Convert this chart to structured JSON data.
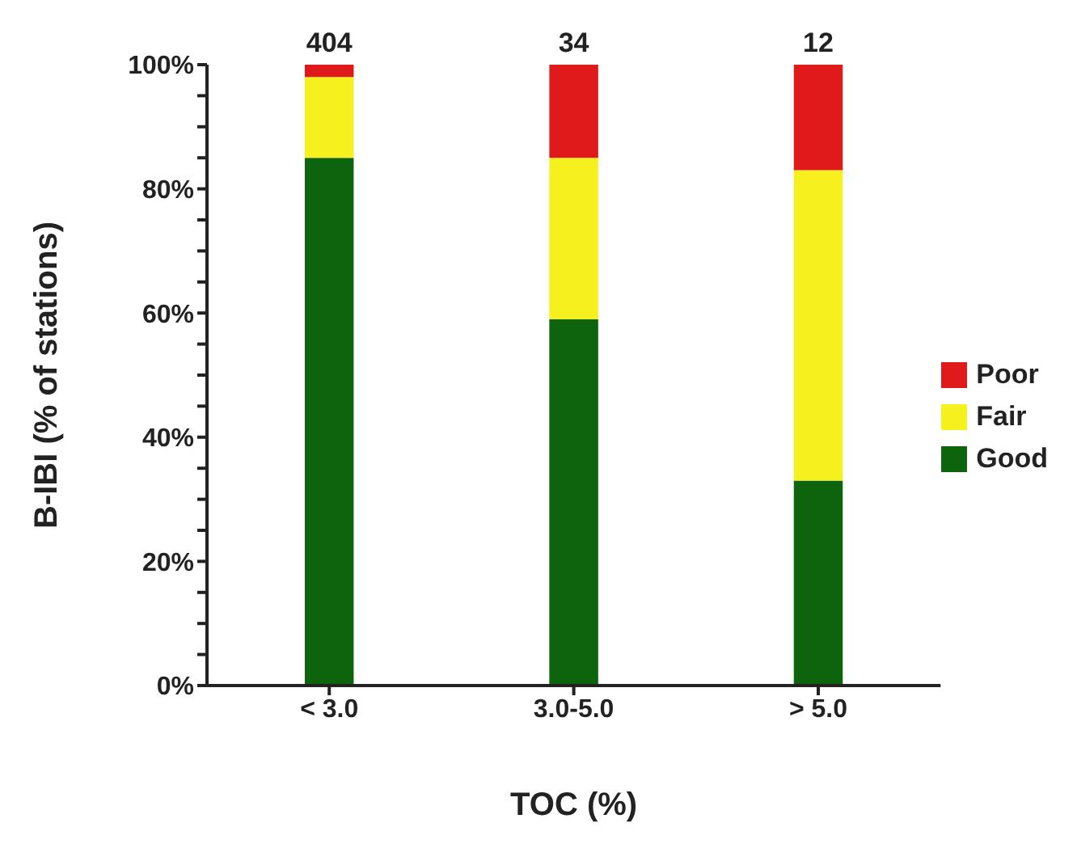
{
  "chart_data": {
    "type": "bar",
    "stacked": true,
    "xlabel": "TOC (%)",
    "ylabel": "B-IBI (% of stations)",
    "categories": [
      "< 3.0",
      "3.0-5.0",
      "> 5.0"
    ],
    "series": [
      {
        "name": "Good",
        "color": "#0d640d",
        "values": [
          85,
          59,
          33
        ]
      },
      {
        "name": "Fair",
        "color": "#f5f01e",
        "values": [
          13,
          26,
          50
        ]
      },
      {
        "name": "Poor",
        "color": "#e01a1a",
        "values": [
          2,
          15,
          17
        ]
      }
    ],
    "annotations": [
      {
        "text": "404",
        "x": "< 3.0",
        "y": 100
      },
      {
        "text": "34",
        "x": "3.0-5.0",
        "y": 100
      },
      {
        "text": "12",
        "x": "> 5.0",
        "y": 100
      }
    ],
    "ylim": [
      0,
      100
    ],
    "yticks": [
      {
        "value": 0,
        "label": "0%"
      },
      {
        "value": 5,
        "label": null
      },
      {
        "value": 10,
        "label": null
      },
      {
        "value": 15,
        "label": null
      },
      {
        "value": 20,
        "label": "20%"
      },
      {
        "value": 25,
        "label": null
      },
      {
        "value": 30,
        "label": null
      },
      {
        "value": 35,
        "label": null
      },
      {
        "value": 40,
        "label": "40%"
      },
      {
        "value": 45,
        "label": null
      },
      {
        "value": 50,
        "label": null
      },
      {
        "value": 55,
        "label": null
      },
      {
        "value": 60,
        "label": "60%"
      },
      {
        "value": 65,
        "label": null
      },
      {
        "value": 70,
        "label": null
      },
      {
        "value": 75,
        "label": null
      },
      {
        "value": 80,
        "label": "80%"
      },
      {
        "value": 85,
        "label": null
      },
      {
        "value": 90,
        "label": null
      },
      {
        "value": 95,
        "label": null
      },
      {
        "value": 100,
        "label": "100%"
      }
    ],
    "grid": false,
    "legend": "right"
  }
}
